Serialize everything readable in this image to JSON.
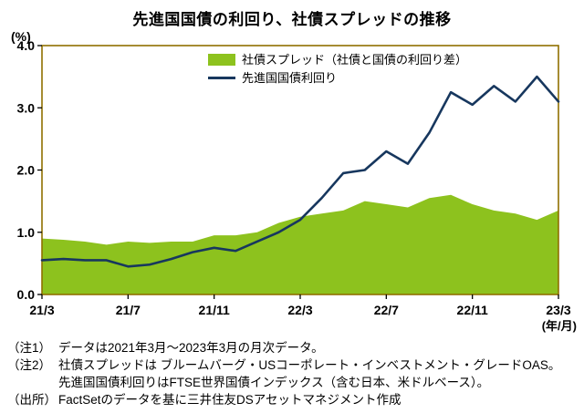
{
  "title": "先進国国債の利回り、社債スプレッドの推移",
  "chart_data": {
    "type": "area+line",
    "title": "先進国国債の利回り、社債スプレッドの推移",
    "y_axis_label": "(%)",
    "x_axis_label": "(年/月)",
    "ylim": [
      0.0,
      4.0
    ],
    "yticks": [
      4.0,
      3.0,
      2.0,
      1.0,
      0.0
    ],
    "grid": false,
    "legend_position": "top-center",
    "frame_color": "#8F7000",
    "x": [
      "21/3",
      "21/4",
      "21/5",
      "21/6",
      "21/7",
      "21/8",
      "21/9",
      "21/10",
      "21/11",
      "21/12",
      "22/1",
      "22/2",
      "22/3",
      "22/4",
      "22/5",
      "22/6",
      "22/7",
      "22/8",
      "22/9",
      "22/10",
      "22/11",
      "22/12",
      "23/1",
      "23/2",
      "23/3"
    ],
    "xtick_labels": [
      "21/3",
      "21/7",
      "21/11",
      "22/3",
      "22/7",
      "22/11",
      "23/3"
    ],
    "series": [
      {
        "name": "社債スプレッド（社債と国債の利回り差）",
        "type": "area",
        "color": "#8DC21E",
        "values": [
          0.9,
          0.88,
          0.85,
          0.8,
          0.85,
          0.83,
          0.85,
          0.85,
          0.95,
          0.95,
          1.0,
          1.15,
          1.25,
          1.3,
          1.35,
          1.5,
          1.45,
          1.4,
          1.55,
          1.6,
          1.45,
          1.35,
          1.3,
          1.2,
          1.35
        ]
      },
      {
        "name": "先進国国債利回り",
        "type": "line",
        "color": "#17375E",
        "values": [
          0.55,
          0.57,
          0.55,
          0.55,
          0.45,
          0.48,
          0.57,
          0.68,
          0.75,
          0.7,
          0.85,
          1.0,
          1.2,
          1.55,
          1.95,
          2.0,
          2.3,
          2.1,
          2.6,
          3.25,
          3.05,
          3.35,
          3.1,
          3.5,
          3.1
        ]
      }
    ]
  },
  "notes": [
    {
      "label": "（注1）",
      "text": "データは2021年3月～2023年3月の月次データ。"
    },
    {
      "label": "（注2）",
      "text": "社債スプレッドは ブルームバーグ・USコーポレート・インベストメント・グレードOAS。"
    },
    {
      "label": "",
      "text": "先進国国債利回りはFTSE世界国債インデックス（含む日本、米ドルベース）。"
    },
    {
      "label": "（出所）",
      "text": "FactSetのデータを基に三井住友DSアセットマネジメント作成"
    }
  ]
}
